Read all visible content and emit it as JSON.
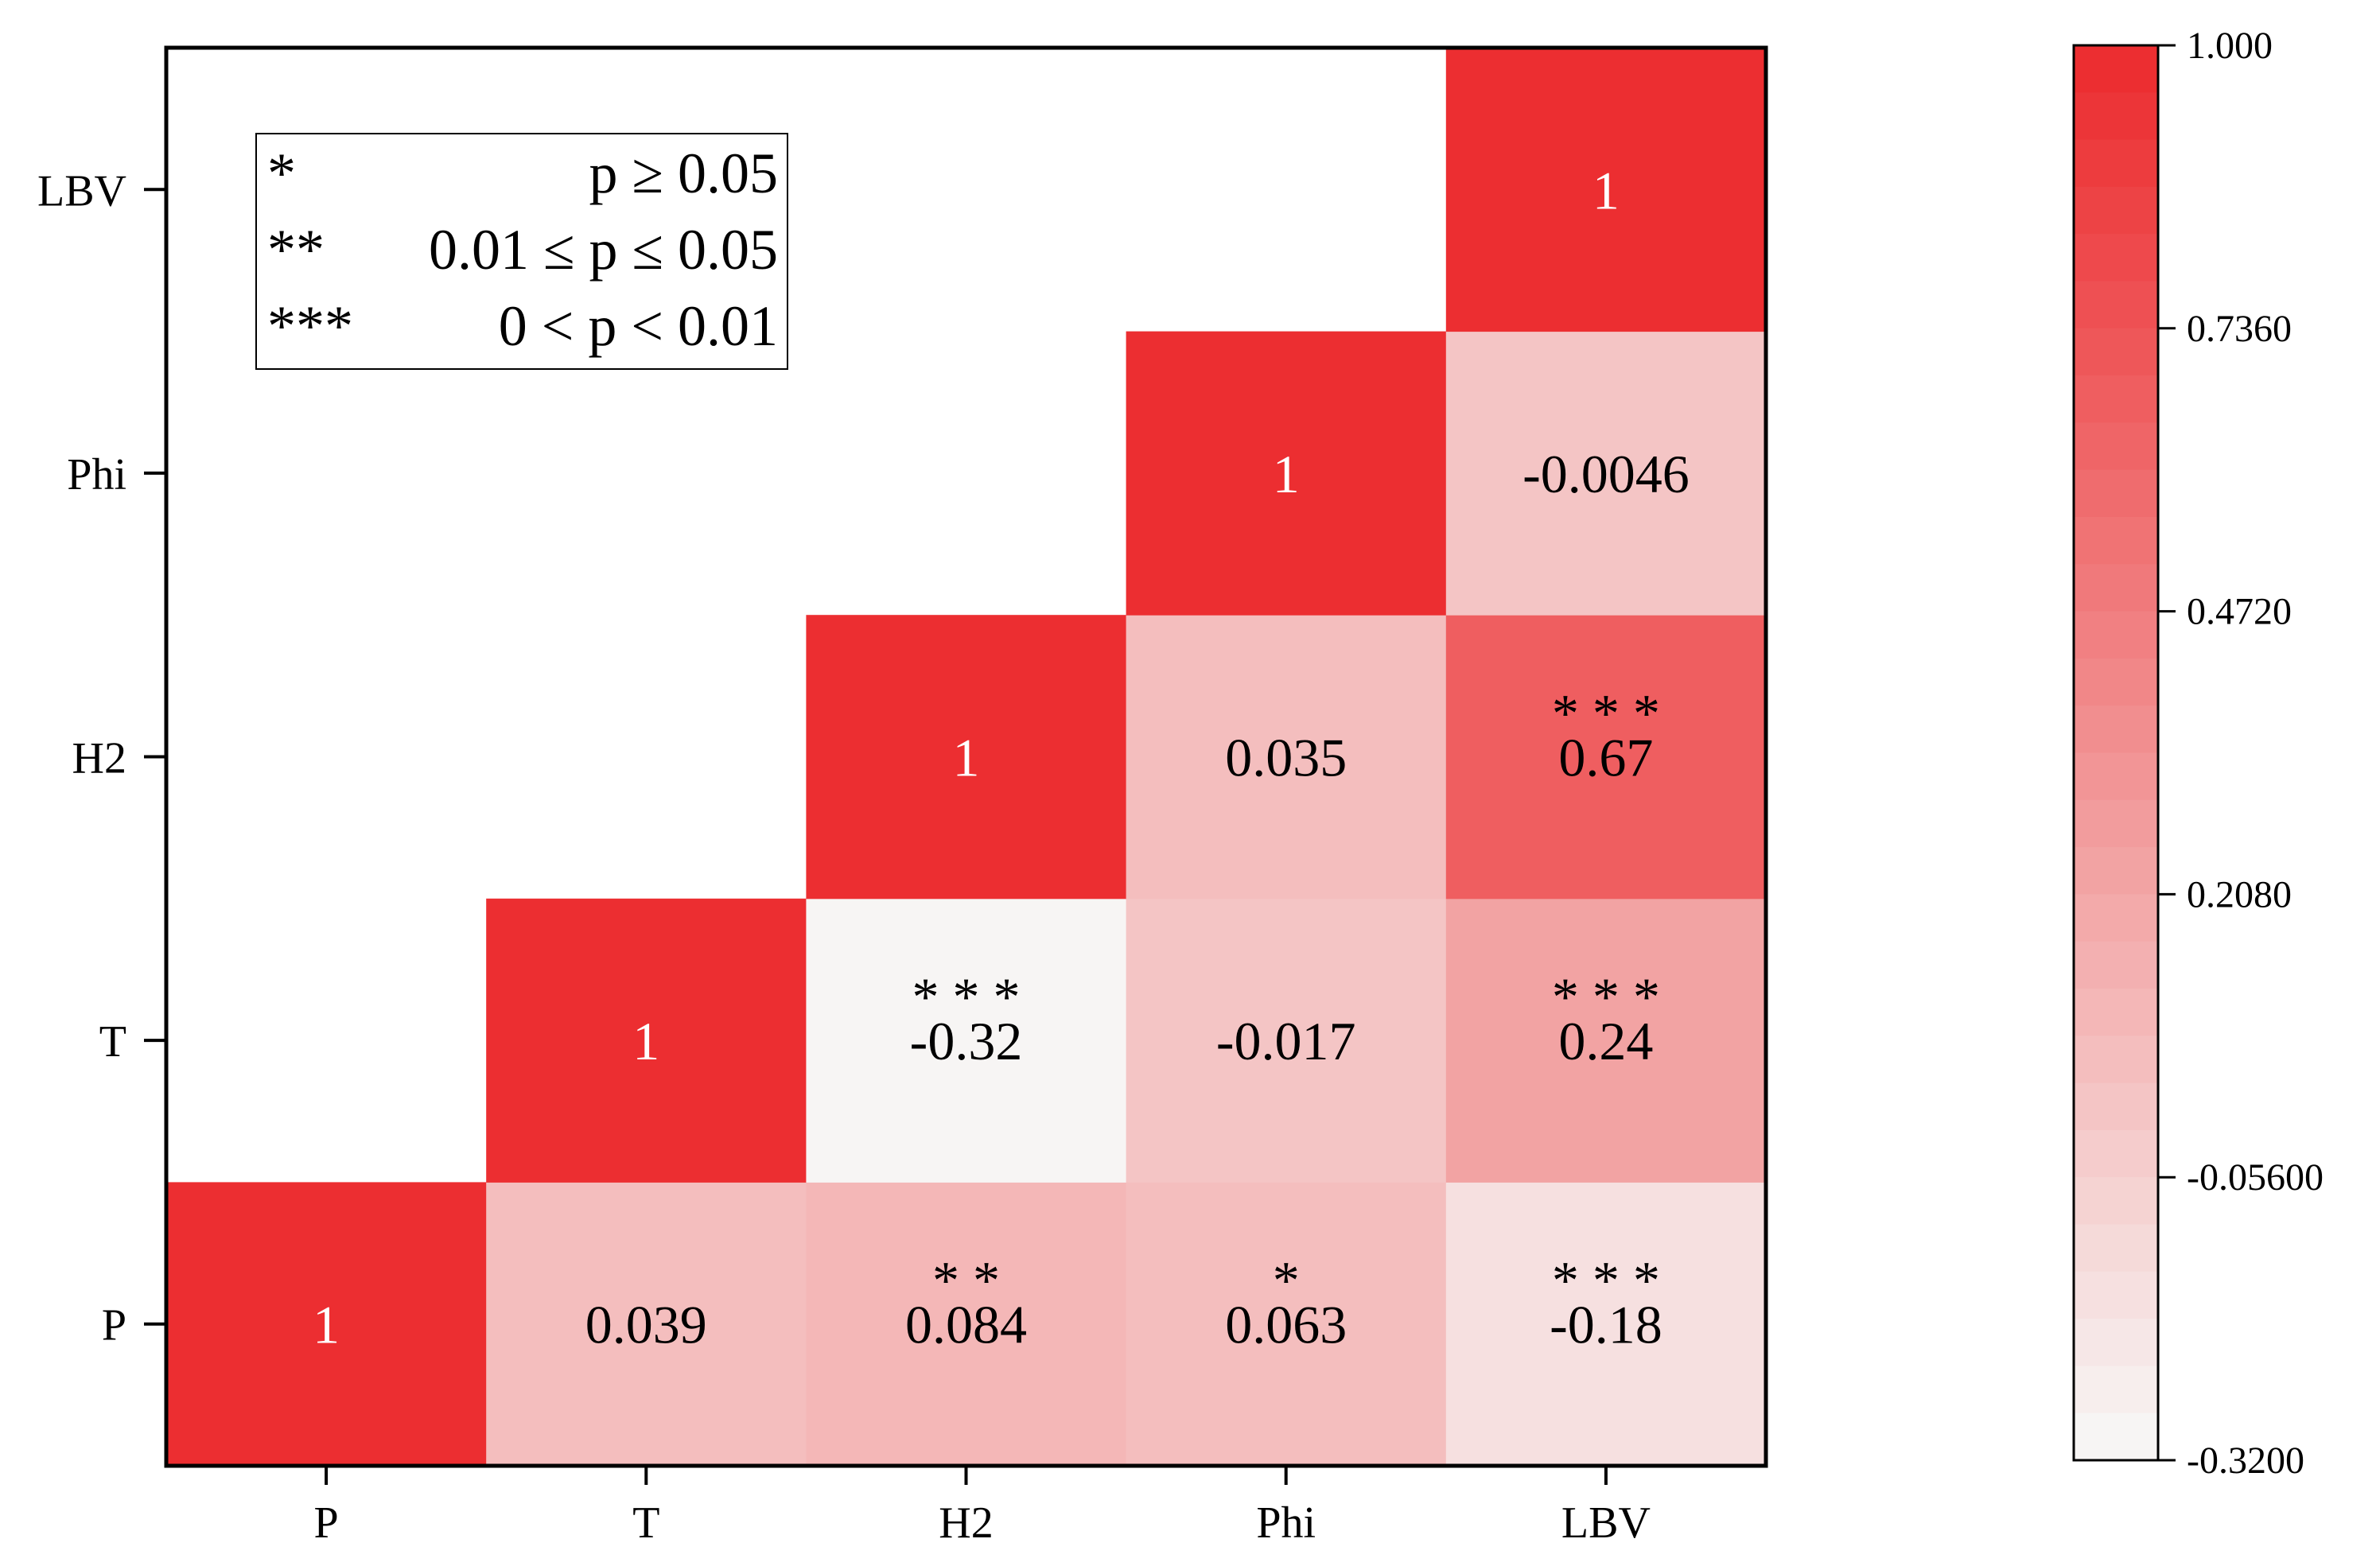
{
  "legend": {
    "rows": [
      {
        "stars": "*",
        "text": "p ≥ 0.05"
      },
      {
        "stars": "**",
        "text": "0.01 ≤ p ≤ 0.05"
      },
      {
        "stars": "***",
        "text": "0 < p < 0.01"
      }
    ]
  },
  "colors": {
    "max": "#ec2e31",
    "min": "#f7f5f4",
    "axis": "#000000",
    "text_dark": "#000000",
    "text_light": "#ffffff"
  },
  "chart_data": {
    "type": "heatmap",
    "variables": [
      "P",
      "T",
      "H2",
      "Phi",
      "LBV"
    ],
    "x_tick_labels": [
      "P",
      "T",
      "H2",
      "Phi",
      "LBV"
    ],
    "y_tick_labels": [
      "LBV",
      "Phi",
      "H2",
      "T",
      "P"
    ],
    "layout": "upper-triangle (column index >= row index, P at bottom)",
    "cells": [
      {
        "row": "P",
        "col": "P",
        "value": 1,
        "label": "1",
        "stars": ""
      },
      {
        "row": "P",
        "col": "T",
        "value": 0.039,
        "label": "0.039",
        "stars": ""
      },
      {
        "row": "P",
        "col": "H2",
        "value": 0.084,
        "label": "0.084",
        "stars": "* *"
      },
      {
        "row": "P",
        "col": "Phi",
        "value": 0.063,
        "label": "0.063",
        "stars": "*"
      },
      {
        "row": "P",
        "col": "LBV",
        "value": -0.18,
        "label": "-0.18",
        "stars": "* * *"
      },
      {
        "row": "T",
        "col": "T",
        "value": 1,
        "label": "1",
        "stars": ""
      },
      {
        "row": "T",
        "col": "H2",
        "value": -0.32,
        "label": "-0.32",
        "stars": "* * *"
      },
      {
        "row": "T",
        "col": "Phi",
        "value": -0.017,
        "label": "-0.017",
        "stars": ""
      },
      {
        "row": "T",
        "col": "LBV",
        "value": 0.24,
        "label": "0.24",
        "stars": "* * *"
      },
      {
        "row": "H2",
        "col": "H2",
        "value": 1,
        "label": "1",
        "stars": ""
      },
      {
        "row": "H2",
        "col": "Phi",
        "value": 0.035,
        "label": "0.035",
        "stars": ""
      },
      {
        "row": "H2",
        "col": "LBV",
        "value": 0.67,
        "label": "0.67",
        "stars": "* * *"
      },
      {
        "row": "Phi",
        "col": "Phi",
        "value": 1,
        "label": "1",
        "stars": ""
      },
      {
        "row": "Phi",
        "col": "LBV",
        "value": -0.0046,
        "label": "-0.0046",
        "stars": ""
      },
      {
        "row": "LBV",
        "col": "LBV",
        "value": 1,
        "label": "1",
        "stars": ""
      }
    ],
    "colorbar": {
      "min": -0.32,
      "max": 1.0,
      "ticks": [
        1.0,
        0.736,
        0.472,
        0.208,
        -0.056,
        -0.32
      ],
      "tick_labels": [
        "1.000",
        "0.7360",
        "0.4720",
        "0.2080",
        "-0.05600",
        "-0.3200"
      ],
      "bands": 30
    }
  }
}
